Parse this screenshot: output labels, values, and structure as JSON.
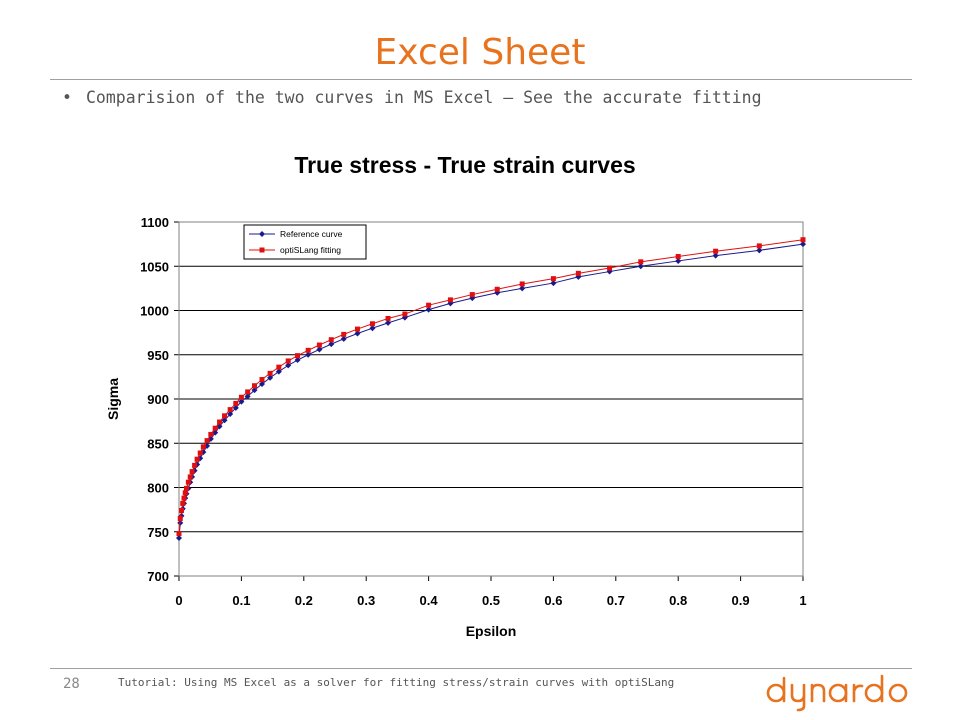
{
  "slide": {
    "title": "Excel Sheet",
    "bullet": "Comparision of the two curves in MS Excel – See the accurate fitting",
    "page_number": "28",
    "footer": "Tutorial: Using MS Excel as a solver for fitting stress/strain curves with optiSLang",
    "logo_text": "dynardo",
    "accent_color": "#e8731e"
  },
  "chart_data": {
    "type": "line",
    "title": "True stress - True strain curves",
    "xlabel": "Epsilon",
    "ylabel": "Sigma",
    "xlim": [
      0,
      1
    ],
    "ylim": [
      700,
      1100
    ],
    "xticks": [
      "0",
      "0.1",
      "0.2",
      "0.3",
      "0.4",
      "0.5",
      "0.6",
      "0.7",
      "0.8",
      "0.9",
      "1"
    ],
    "yticks": [
      "700",
      "750",
      "800",
      "850",
      "900",
      "950",
      "1000",
      "1050",
      "1100"
    ],
    "grid": "horizontal",
    "legend_position": "top-left",
    "series": [
      {
        "name": "Reference curve",
        "color": "#1a1a8c",
        "marker": "diamond",
        "x": [
          0,
          0.002,
          0.004,
          0.006,
          0.008,
          0.01,
          0.012,
          0.015,
          0.018,
          0.021,
          0.025,
          0.029,
          0.034,
          0.039,
          0.045,
          0.051,
          0.058,
          0.065,
          0.073,
          0.082,
          0.091,
          0.1,
          0.11,
          0.121,
          0.133,
          0.146,
          0.16,
          0.175,
          0.19,
          0.207,
          0.225,
          0.244,
          0.264,
          0.286,
          0.31,
          0.335,
          0.362,
          0.4,
          0.435,
          0.47,
          0.51,
          0.55,
          0.6,
          0.64,
          0.69,
          0.74,
          0.8,
          0.86,
          0.93,
          1.0
        ],
        "y": [
          743,
          760,
          768,
          776,
          782,
          788,
          793,
          799,
          806,
          812,
          819,
          826,
          833,
          840,
          847,
          855,
          862,
          869,
          876,
          883,
          890,
          897,
          903,
          910,
          917,
          924,
          931,
          938,
          944,
          950,
          956,
          962,
          968,
          974,
          980,
          986,
          992,
          1001,
          1008,
          1014,
          1020,
          1025,
          1031,
          1038,
          1044,
          1050,
          1056,
          1062,
          1068,
          1075
        ]
      },
      {
        "name": "optiSLang fitting",
        "color": "#e01010",
        "marker": "square",
        "x": [
          0,
          0.002,
          0.004,
          0.006,
          0.008,
          0.01,
          0.012,
          0.015,
          0.018,
          0.021,
          0.025,
          0.029,
          0.034,
          0.039,
          0.045,
          0.051,
          0.058,
          0.065,
          0.073,
          0.082,
          0.091,
          0.1,
          0.11,
          0.121,
          0.133,
          0.146,
          0.16,
          0.175,
          0.19,
          0.207,
          0.225,
          0.244,
          0.264,
          0.286,
          0.31,
          0.335,
          0.362,
          0.4,
          0.435,
          0.47,
          0.51,
          0.55,
          0.6,
          0.64,
          0.69,
          0.74,
          0.8,
          0.86,
          0.93,
          1.0
        ],
        "y": [
          748,
          765,
          774,
          782,
          788,
          794,
          799,
          806,
          812,
          818,
          825,
          832,
          839,
          846,
          853,
          860,
          867,
          874,
          881,
          888,
          895,
          902,
          908,
          915,
          922,
          929,
          936,
          943,
          949,
          955,
          961,
          967,
          973,
          979,
          985,
          991,
          996,
          1006,
          1012,
          1018,
          1024,
          1030,
          1036,
          1042,
          1048,
          1055,
          1061,
          1067,
          1073,
          1080
        ]
      }
    ]
  }
}
